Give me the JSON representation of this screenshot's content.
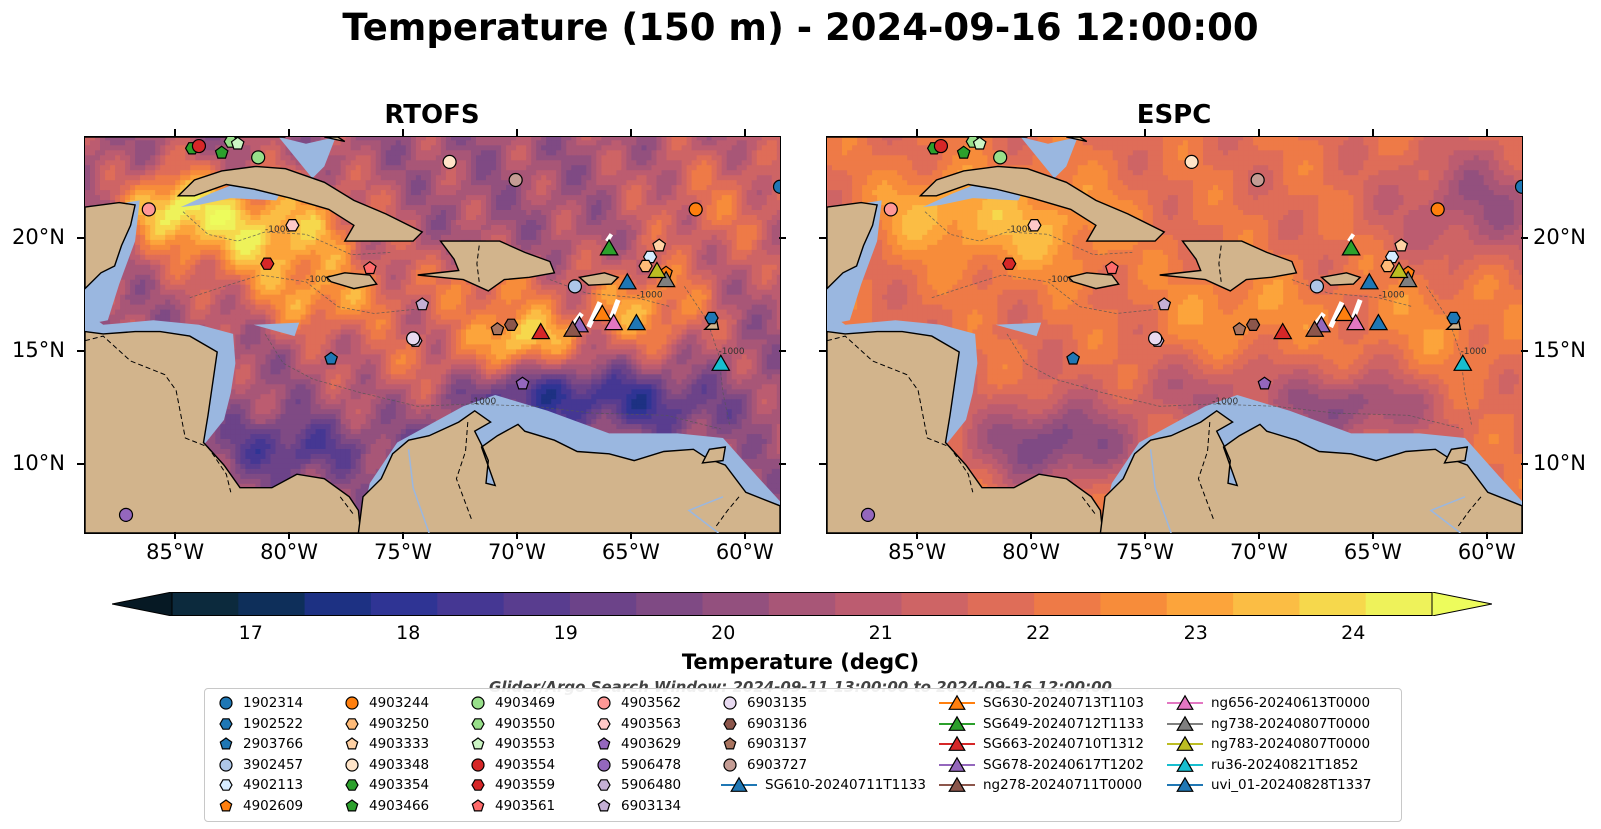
{
  "title": "Temperature (150 m) - 2024-09-16 12:00:00",
  "panels": [
    {
      "title": "RTOFS",
      "model": "warm"
    },
    {
      "title": "ESPC",
      "model": "smooth"
    }
  ],
  "map": {
    "lon_range": [
      -89,
      -58.5
    ],
    "lat_range": [
      7,
      24.5
    ],
    "lon_ticks": [
      "85°W",
      "80°W",
      "75°W",
      "70°W",
      "65°W",
      "60°W"
    ],
    "lat_ticks": [
      "20°N",
      "15°N",
      "10°N"
    ],
    "land_color": "#d2b48c",
    "shelf_color": "#9ab7e0",
    "contour_labels": [
      "-1000"
    ]
  },
  "colorbar": {
    "title": "Temperature (degC)",
    "range": [
      16.5,
      24.5
    ],
    "ticks": [
      "17",
      "18",
      "19",
      "20",
      "21",
      "22",
      "23",
      "24"
    ],
    "colors": [
      "#0c2a3d",
      "#0e2f5a",
      "#1d3183",
      "#2f3494",
      "#453793",
      "#593d8f",
      "#6c4389",
      "#7f4a84",
      "#93507e",
      "#a85677",
      "#bc5c70",
      "#ce6465",
      "#df6d58",
      "#ee7a47",
      "#f78c3a",
      "#fca43b",
      "#fbbd44",
      "#f6d84c",
      "#eef25a"
    ],
    "under_color": "#061924",
    "over_color": "#edfc5c"
  },
  "search_window": "Glider/Argo Search Window: 2024-09-11 13:00:00 to 2024-09-16 12:00:00",
  "legend_items": [
    {
      "label": "1902314",
      "marker": "circle",
      "color": "#1f77b4",
      "lon": -58.5,
      "lat": 22.3
    },
    {
      "label": "1902522",
      "marker": "hexagon",
      "color": "#1f77b4",
      "lon": -61.5,
      "lat": 16.5
    },
    {
      "label": "2903766",
      "marker": "pentagon",
      "color": "#1f77b4",
      "lon": -78.2,
      "lat": 14.7
    },
    {
      "label": "3902457",
      "marker": "circle",
      "color": "#aec7e8",
      "lon": -67.5,
      "lat": 17.9
    },
    {
      "label": "4902113",
      "marker": "hexagon",
      "color": "#d6ecff",
      "lon": -64.2,
      "lat": 19.2
    },
    {
      "label": "4902609",
      "marker": "pentagon",
      "color": "#ff7f0e",
      "lon": -63.5,
      "lat": 18.5
    },
    {
      "label": "4903244",
      "marker": "circle",
      "color": "#ff7f0e",
      "lon": -62.2,
      "lat": 21.3
    },
    {
      "label": "4903250",
      "marker": "hexagon",
      "color": "#ffbb78",
      "lon": -64.4,
      "lat": 18.8
    },
    {
      "label": "4903333",
      "marker": "pentagon",
      "color": "#ffd1a4",
      "lon": -63.8,
      "lat": 19.7
    },
    {
      "label": "4903348",
      "marker": "circle",
      "color": "#ffe4c8",
      "lon": -73.0,
      "lat": 23.4
    },
    {
      "label": "4903354",
      "marker": "hexagon",
      "color": "#2ca02c",
      "lon": -84.3,
      "lat": 24.0
    },
    {
      "label": "4903466",
      "marker": "pentagon",
      "color": "#2ca02c",
      "lon": -83.0,
      "lat": 23.8
    },
    {
      "label": "4903469",
      "marker": "circle",
      "color": "#98df8a",
      "lon": -81.4,
      "lat": 23.6
    },
    {
      "label": "4903550",
      "marker": "hexagon",
      "color": "#98df8a",
      "lon": -82.6,
      "lat": 24.3
    },
    {
      "label": "4903553",
      "marker": "pentagon",
      "color": "#ccf5c4",
      "lon": -82.3,
      "lat": 24.2
    },
    {
      "label": "4903554",
      "marker": "circle",
      "color": "#d62728",
      "lon": -84.0,
      "lat": 24.1
    },
    {
      "label": "4903559",
      "marker": "hexagon",
      "color": "#d62728",
      "lon": -81.0,
      "lat": 18.9
    },
    {
      "label": "4903561",
      "marker": "pentagon",
      "color": "#ff6b6b",
      "lon": -76.5,
      "lat": 18.7
    },
    {
      "label": "4903562",
      "marker": "circle",
      "color": "#ff9896",
      "lon": -86.2,
      "lat": 21.3
    },
    {
      "label": "4903563",
      "marker": "hexagon",
      "color": "#ffc9c8",
      "lon": -79.9,
      "lat": 20.6
    },
    {
      "label": "4903629",
      "marker": "pentagon",
      "color": "#9467bd",
      "lon": -69.8,
      "lat": 13.6
    },
    {
      "label": "5906478",
      "marker": "circle",
      "color": "#9467bd",
      "lon": -87.2,
      "lat": 7.8
    },
    {
      "label": "5906480",
      "marker": "hexagon",
      "color": "#c5b0d5",
      "lon": -74.5,
      "lat": 15.5
    },
    {
      "label": "6903134",
      "marker": "pentagon",
      "color": "#c5b0d5",
      "lon": -74.2,
      "lat": 17.1
    },
    {
      "label": "6903135",
      "marker": "circle",
      "color": "#e8daf1",
      "lon": -74.6,
      "lat": 15.6
    },
    {
      "label": "6903136",
      "marker": "hexagon",
      "color": "#8c564b",
      "lon": -70.3,
      "lat": 16.2
    },
    {
      "label": "6903137",
      "marker": "pentagon",
      "color": "#a9745f",
      "lon": -70.9,
      "lat": 16.0
    },
    {
      "label": "6903727",
      "marker": "circle",
      "color": "#c49c94",
      "lon": -70.1,
      "lat": 22.6
    },
    {
      "label": "SG610-20240711T1133",
      "marker": "triangle",
      "color": "#1f77b4",
      "lon": -64.8,
      "lat": 16.3
    },
    {
      "label": "SG630-20240713T1103",
      "marker": "triangle",
      "color": "#ff7f0e",
      "lon": -66.3,
      "lat": 16.7
    },
    {
      "label": "SG649-20240712T1133",
      "marker": "triangle",
      "color": "#2ca02c",
      "lon": -66.0,
      "lat": 19.6
    },
    {
      "label": "SG663-20240710T1312",
      "marker": "triangle",
      "color": "#d62728",
      "lon": -69.0,
      "lat": 15.9
    },
    {
      "label": "SG678-20240617T1202",
      "marker": "triangle",
      "color": "#9467bd",
      "lon": -67.3,
      "lat": 16.2
    },
    {
      "label": "ng278-20240711T0000",
      "marker": "triangle",
      "color": "#8c564b",
      "lon": -67.6,
      "lat": 16.0
    },
    {
      "label": "ng656-20240613T0000",
      "marker": "triangle",
      "color": "#e377c2",
      "lon": -65.8,
      "lat": 16.3
    },
    {
      "label": "ng738-20240807T0000",
      "marker": "triangle",
      "color": "#7f7f7f",
      "lon": -63.5,
      "lat": 18.2
    },
    {
      "label": "ng783-20240807T0000",
      "marker": "triangle",
      "color": "#bcbd22",
      "lon": -63.9,
      "lat": 18.6
    },
    {
      "label": "ru36-20240821T1852",
      "marker": "triangle",
      "color": "#17becf",
      "lon": -61.1,
      "lat": 14.5
    },
    {
      "label": "uvi_01-20240828T1337",
      "marker": "triangle",
      "color": "#1f77b4",
      "lon": -65.2,
      "lat": 18.1
    }
  ]
}
